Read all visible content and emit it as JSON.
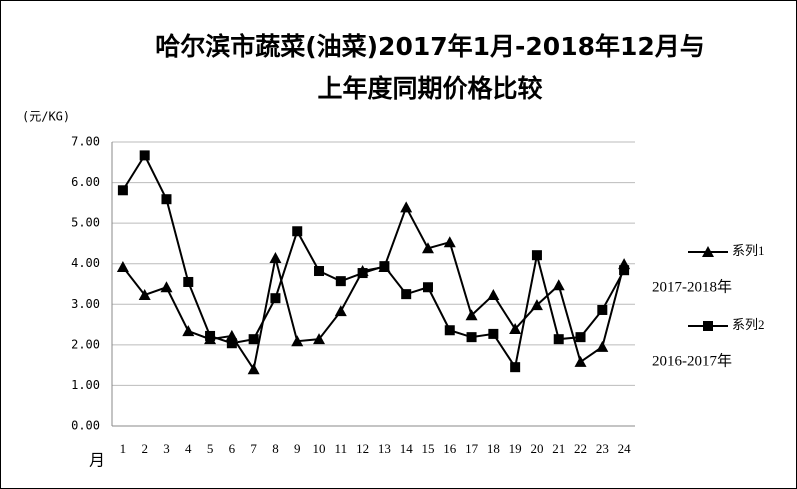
{
  "chart_data": {
    "type": "line",
    "title": [
      "哈尔滨市蔬菜(油菜)2017年1月-2018年12月与",
      "上年度同期价格比较"
    ],
    "y_label": "(元/KG)",
    "x_label": "月",
    "categories": [
      1,
      2,
      3,
      4,
      5,
      6,
      7,
      8,
      9,
      10,
      11,
      12,
      13,
      14,
      15,
      16,
      17,
      18,
      19,
      20,
      21,
      22,
      23,
      24
    ],
    "series": [
      {
        "name": "系列1",
        "color": "#000000",
        "marker": "triangle",
        "annotation": "2017-2018年",
        "values": [
          3.92,
          3.23,
          3.42,
          2.34,
          2.14,
          2.22,
          1.4,
          4.14,
          2.09,
          2.14,
          2.83,
          3.82,
          3.92,
          5.39,
          4.38,
          4.53,
          2.73,
          3.23,
          2.39,
          2.98,
          3.47,
          1.58,
          1.95,
          3.99
        ]
      },
      {
        "name": "系列2",
        "color": "#000000",
        "marker": "square",
        "annotation": "2016-2017年",
        "values": [
          5.81,
          6.67,
          5.59,
          3.55,
          2.22,
          2.04,
          2.14,
          3.15,
          4.8,
          3.82,
          3.57,
          3.77,
          3.94,
          3.25,
          3.42,
          2.36,
          2.19,
          2.27,
          1.45,
          4.21,
          2.14,
          2.19,
          2.86,
          3.84
        ]
      }
    ],
    "ylim": [
      0,
      7
    ],
    "yticks": [
      {
        "value": 0,
        "label": "0.00"
      },
      {
        "value": 1,
        "label": "1.00"
      },
      {
        "value": 2,
        "label": "2.00"
      },
      {
        "value": 3,
        "label": "3.00"
      },
      {
        "value": 4,
        "label": "4.00"
      },
      {
        "value": 5,
        "label": "5.00"
      },
      {
        "value": 6,
        "label": "6.00"
      },
      {
        "value": 7,
        "label": "7.00"
      }
    ],
    "grid": true,
    "legend": "right"
  }
}
